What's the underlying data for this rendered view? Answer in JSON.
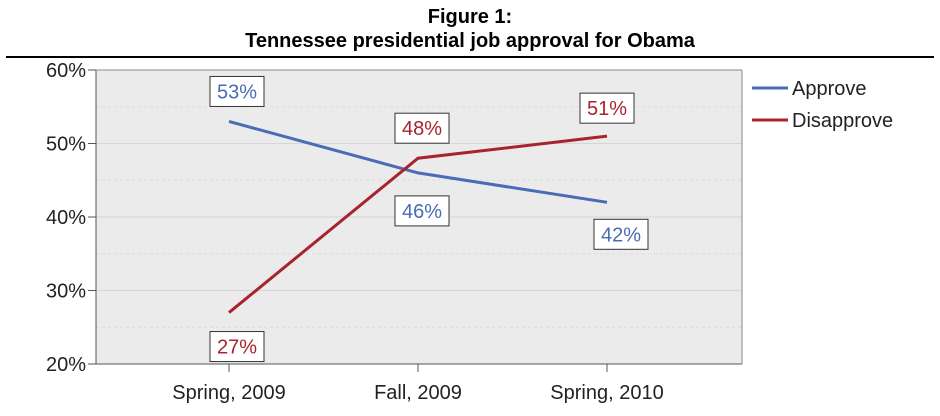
{
  "figure": {
    "title_line1": "Figure 1:",
    "title_line2": "Tennessee presidential job approval for Obama"
  },
  "chart_data": {
    "type": "line",
    "categories": [
      "Spring, 2009",
      "Fall, 2009",
      "Spring, 2010"
    ],
    "series": [
      {
        "name": "Approve",
        "values": [
          53,
          46,
          42
        ],
        "labels": [
          "53%",
          "46%",
          "42%"
        ],
        "color": "#4a6bb5"
      },
      {
        "name": "Disapprove",
        "values": [
          27,
          48,
          51
        ],
        "labels": [
          "27%",
          "48%",
          "51%"
        ],
        "color": "#a8242c"
      }
    ],
    "ylim": [
      20,
      60
    ],
    "yticks": [
      20,
      30,
      40,
      50,
      60
    ],
    "ytick_labels": [
      "20%",
      "30%",
      "40%",
      "50%",
      "60%"
    ],
    "xlabel": "",
    "ylabel": "",
    "grid": true,
    "legend": "right",
    "plot_background": "#ebebeb"
  }
}
